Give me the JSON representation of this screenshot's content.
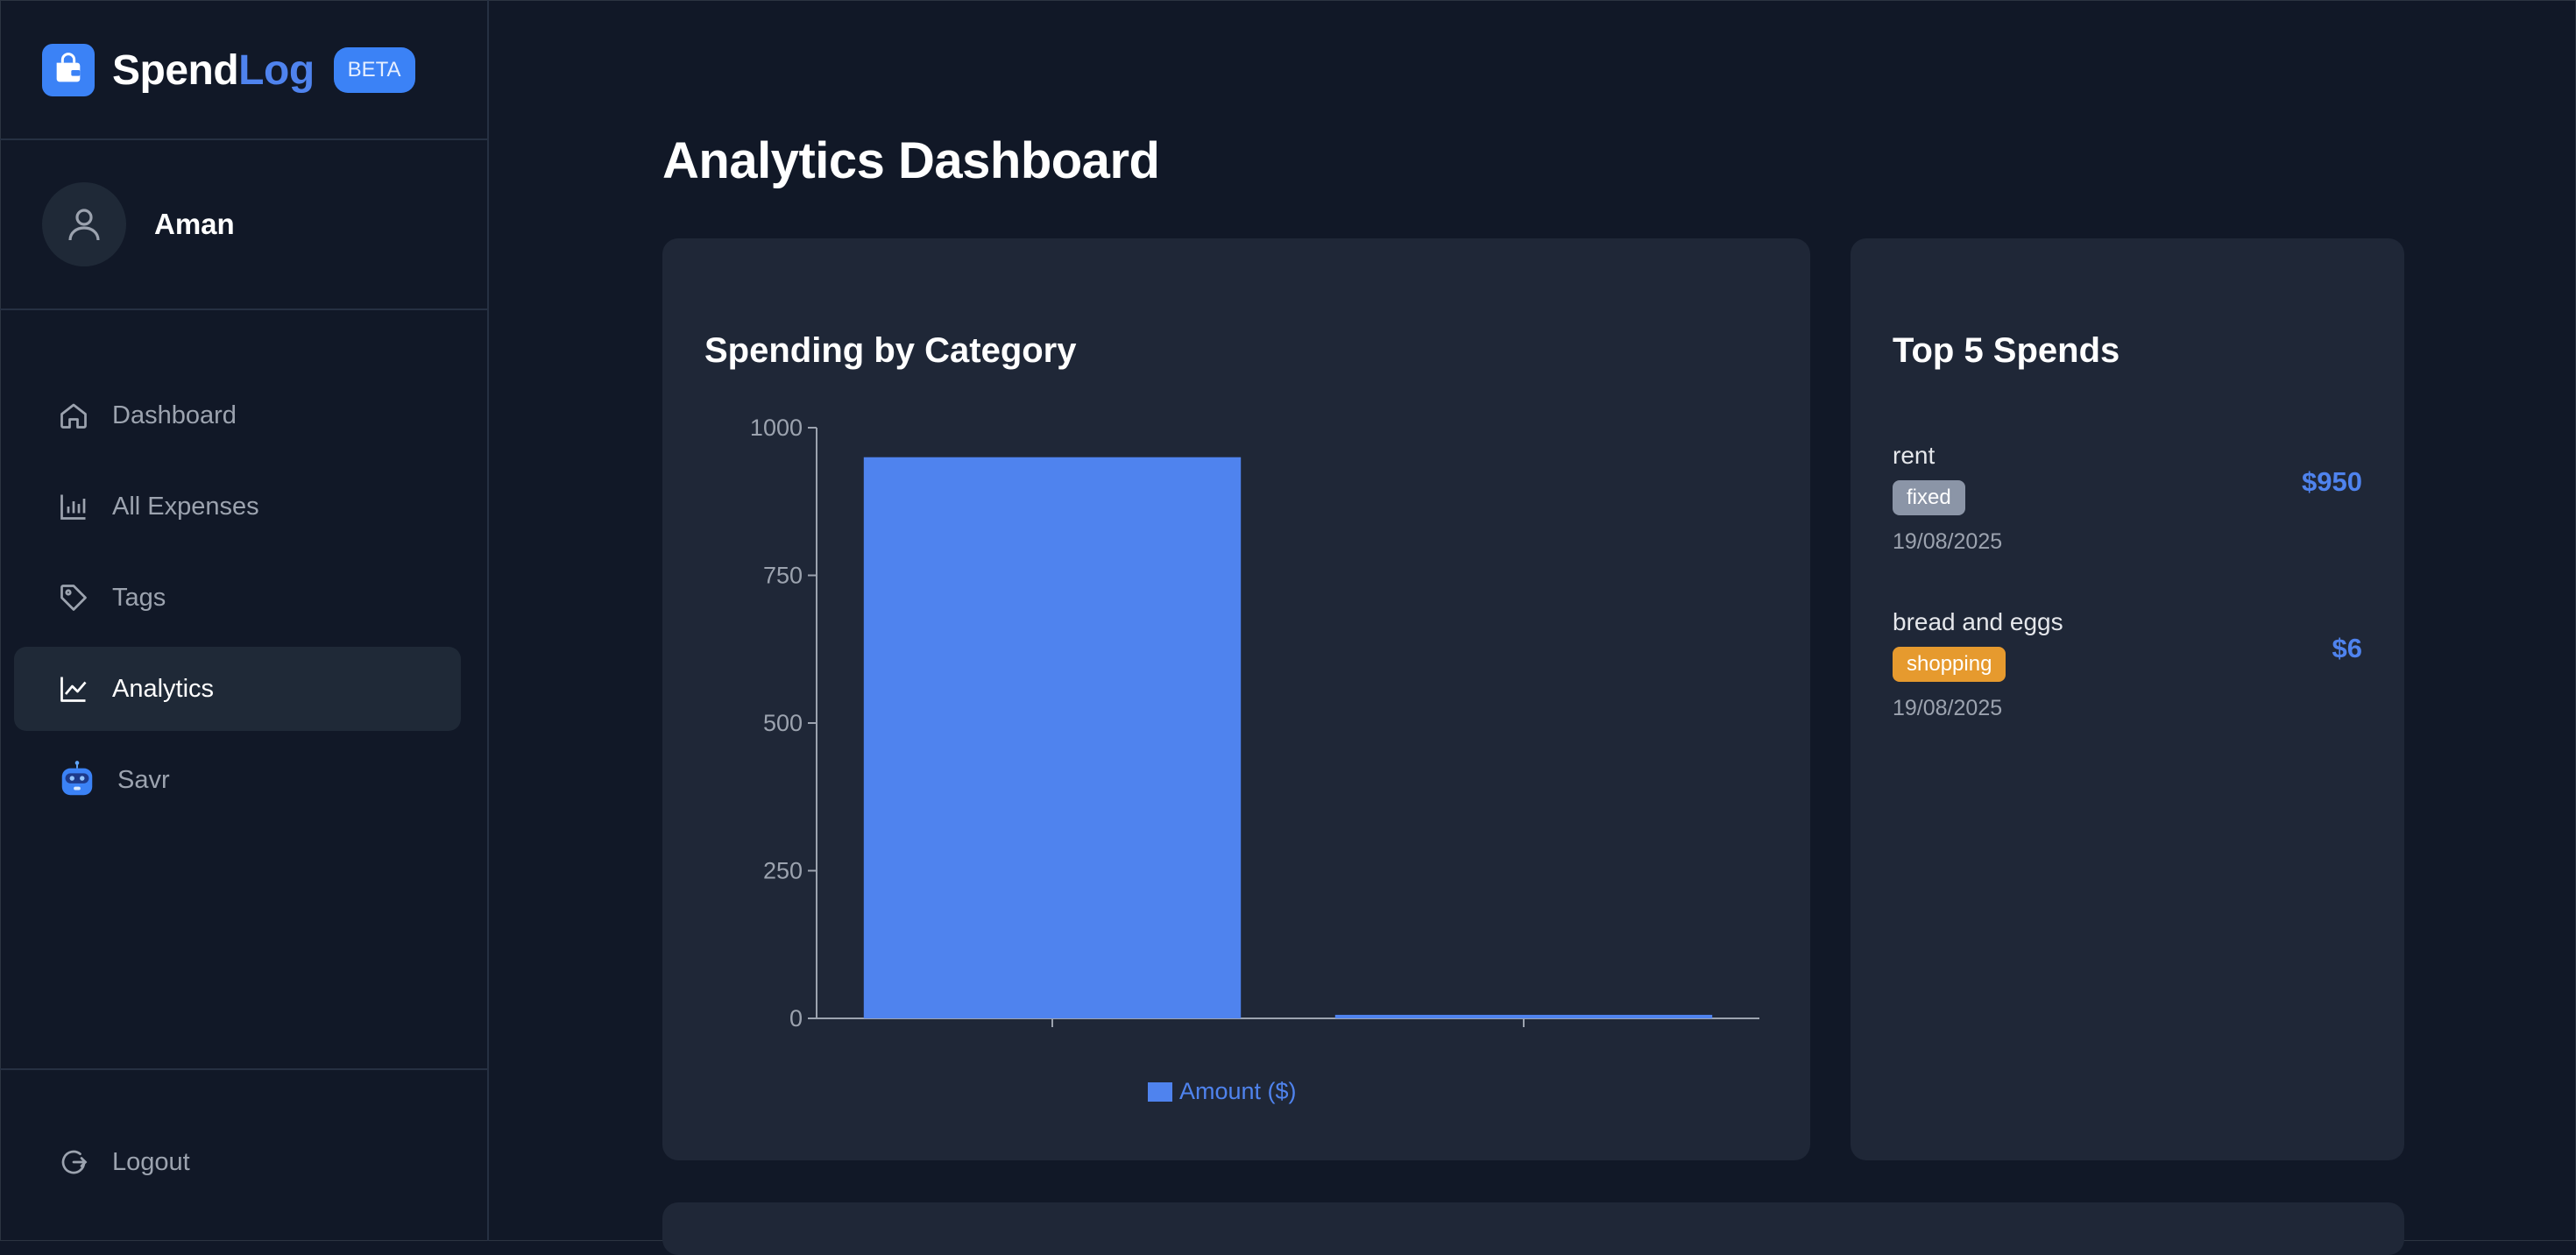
{
  "brand": {
    "part1": "Spend",
    "part2": "Log",
    "badge": "BETA"
  },
  "user": {
    "name": "Aman"
  },
  "nav": {
    "items": [
      {
        "label": "Dashboard",
        "icon": "home-icon"
      },
      {
        "label": "All Expenses",
        "icon": "bar-chart-icon"
      },
      {
        "label": "Tags",
        "icon": "tag-icon"
      },
      {
        "label": "Analytics",
        "icon": "line-chart-icon",
        "active": true
      },
      {
        "label": "Savr",
        "icon": "robot-icon"
      }
    ],
    "logout": "Logout"
  },
  "page": {
    "title": "Analytics Dashboard"
  },
  "chart_card": {
    "title": "Spending by Category"
  },
  "chart_data": {
    "type": "bar",
    "categories": [
      "",
      ""
    ],
    "series": [
      {
        "name": "Amount ($)",
        "values": [
          950,
          6
        ],
        "color": "#4f83ee"
      }
    ],
    "yticks": [
      0,
      250,
      500,
      750,
      1000
    ],
    "ylim": [
      0,
      1000
    ],
    "legend": "bottom",
    "grid": false
  },
  "top_spends": {
    "title": "Top 5 Spends",
    "items": [
      {
        "name": "rent",
        "tag": "fixed",
        "tag_color": "#8b95a7",
        "date": "19/08/2025",
        "amount": "$950"
      },
      {
        "name": "bread and eggs",
        "tag": "shopping",
        "tag_color": "#e69a2e",
        "date": "19/08/2025",
        "amount": "$6"
      }
    ]
  },
  "colors": {
    "accent": "#4f83ee",
    "bg": "#111827",
    "card": "#1f2737"
  }
}
